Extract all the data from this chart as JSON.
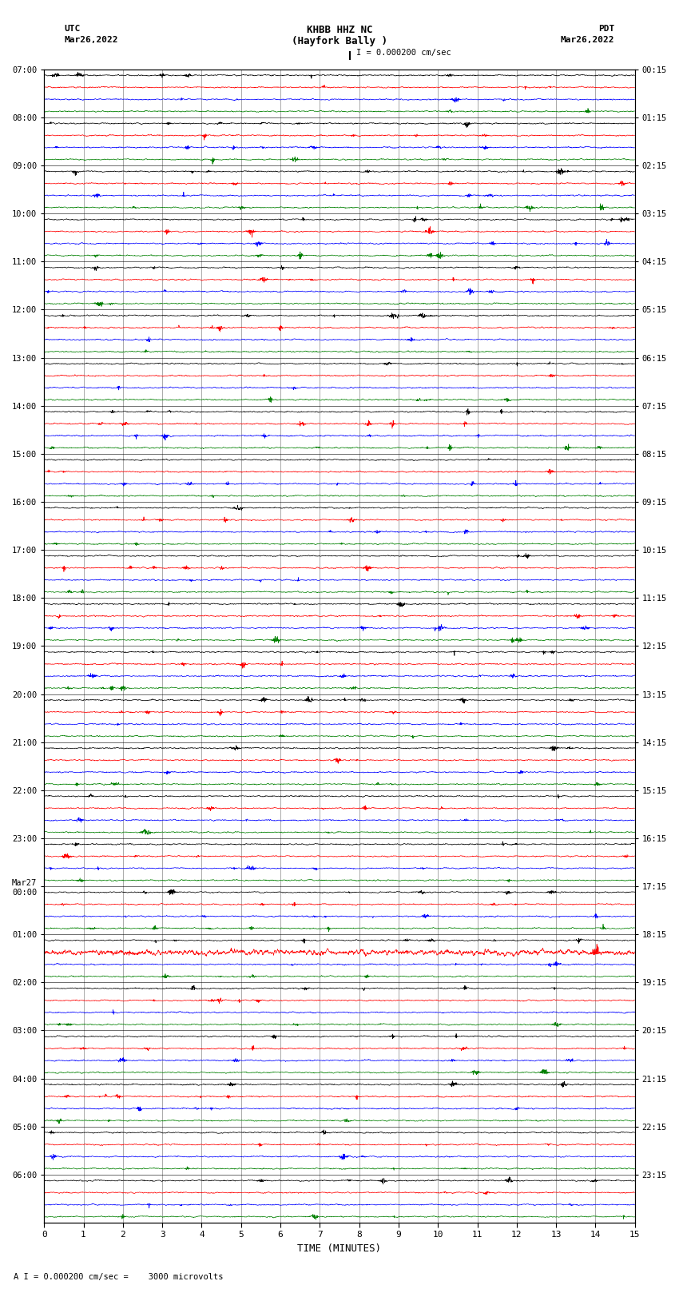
{
  "title_line1": "KHBB HHZ NC",
  "title_line2": "(Hayfork Bally )",
  "scale_label": "I = 0.000200 cm/sec",
  "bottom_label": "A I = 0.000200 cm/sec =    3000 microvolts",
  "xlabel": "TIME (MINUTES)",
  "left_header": "UTC",
  "left_date": "Mar26,2022",
  "right_header": "PDT",
  "right_date": "Mar26,2022",
  "utc_labels": [
    "07:00",
    "08:00",
    "09:00",
    "10:00",
    "11:00",
    "12:00",
    "13:00",
    "14:00",
    "15:00",
    "16:00",
    "17:00",
    "18:00",
    "19:00",
    "20:00",
    "21:00",
    "22:00",
    "23:00",
    "Mar27\n00:00",
    "01:00",
    "02:00",
    "03:00",
    "04:00",
    "05:00",
    "06:00"
  ],
  "pdt_labels": [
    "00:15",
    "01:15",
    "02:15",
    "03:15",
    "04:15",
    "05:15",
    "06:15",
    "07:15",
    "08:15",
    "09:15",
    "10:15",
    "11:15",
    "12:15",
    "13:15",
    "14:15",
    "15:15",
    "16:15",
    "17:15",
    "18:15",
    "19:15",
    "20:15",
    "21:15",
    "22:15",
    "23:15"
  ],
  "n_rows": 24,
  "traces_per_row": 4,
  "colors": [
    "black",
    "red",
    "blue",
    "green"
  ],
  "xmin": 0,
  "xmax": 15,
  "x_ticks": [
    0,
    1,
    2,
    3,
    4,
    5,
    6,
    7,
    8,
    9,
    10,
    11,
    12,
    13,
    14,
    15
  ],
  "bg_color": "white",
  "trace_amplitude": 0.06,
  "special_row": 18,
  "special_trace": 1,
  "special_amplitude": 0.25,
  "noise_seed": 42,
  "n_points": 3000,
  "linewidth": 0.5
}
